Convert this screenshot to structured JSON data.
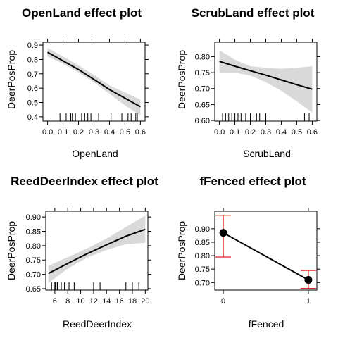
{
  "chart_data": [
    {
      "type": "line",
      "title": "OpenLand effect plot",
      "xlabel": "OpenLand",
      "ylabel": "DeerPosProp",
      "xlim": [
        -0.03,
        0.63
      ],
      "ylim": [
        0.37,
        0.92
      ],
      "xticks": [
        0.0,
        0.1,
        0.2,
        0.3,
        0.4,
        0.5,
        0.6
      ],
      "xtick_labels": [
        "0.0",
        "0.1",
        "0.2",
        "0.3",
        "0.4",
        "0.5",
        "0.6"
      ],
      "yticks": [
        0.4,
        0.5,
        0.6,
        0.7,
        0.8,
        0.9
      ],
      "ytick_labels": [
        "0.4",
        "0.5",
        "0.6",
        "0.7",
        "0.8",
        "0.9"
      ],
      "series": [
        {
          "x": [
            0.0,
            0.1,
            0.2,
            0.3,
            0.4,
            0.5,
            0.6
          ],
          "y": [
            0.85,
            0.79,
            0.73,
            0.66,
            0.59,
            0.53,
            0.47
          ],
          "lower": [
            0.82,
            0.77,
            0.71,
            0.64,
            0.56,
            0.48,
            0.41
          ],
          "upper": [
            0.88,
            0.82,
            0.76,
            0.69,
            0.62,
            0.57,
            0.52
          ]
        }
      ],
      "rug": [
        0.08,
        0.12,
        0.15,
        0.16,
        0.18,
        0.22,
        0.24,
        0.26,
        0.28,
        0.33,
        0.41,
        0.48,
        0.52,
        0.54,
        0.57,
        0.58
      ],
      "band": true,
      "points": false
    },
    {
      "type": "line",
      "title": "ScrubLand effect plot",
      "xlabel": "ScrubLand",
      "ylabel": "DeerPosProp",
      "xlim": [
        -0.03,
        0.63
      ],
      "ylim": [
        0.598,
        0.845
      ],
      "xticks": [
        0.0,
        0.1,
        0.2,
        0.3,
        0.4,
        0.5,
        0.6
      ],
      "xtick_labels": [
        "0.0",
        "0.1",
        "0.2",
        "0.3",
        "0.4",
        "0.5",
        "0.6"
      ],
      "yticks": [
        0.6,
        0.65,
        0.7,
        0.75,
        0.8
      ],
      "ytick_labels": [
        "0.60",
        "0.65",
        "0.70",
        "0.75",
        "0.80"
      ],
      "series": [
        {
          "x": [
            0.0,
            0.1,
            0.2,
            0.3,
            0.4,
            0.5,
            0.6
          ],
          "y": [
            0.785,
            0.77,
            0.756,
            0.742,
            0.727,
            0.712,
            0.698
          ],
          "lower": [
            0.748,
            0.75,
            0.741,
            0.72,
            0.693,
            0.66,
            0.625
          ],
          "upper": [
            0.82,
            0.79,
            0.77,
            0.765,
            0.762,
            0.765,
            0.77
          ]
        }
      ],
      "rug": [
        0.02,
        0.04,
        0.05,
        0.06,
        0.08,
        0.1,
        0.12,
        0.14,
        0.17,
        0.2,
        0.24,
        0.26,
        0.3,
        0.55,
        0.58
      ],
      "band": true,
      "points": false
    },
    {
      "type": "line",
      "title": "ReedDeerIndex effect plot",
      "xlabel": "ReedDeerIndex",
      "ylabel": "DeerPosProp",
      "xlim": [
        4.6,
        20.4
      ],
      "ylim": [
        0.645,
        0.92
      ],
      "xticks": [
        6,
        8,
        10,
        12,
        14,
        16,
        18,
        20
      ],
      "xtick_labels": [
        "6",
        "8",
        "10",
        "12",
        "14",
        "16",
        "18",
        "20"
      ],
      "yticks": [
        0.65,
        0.7,
        0.75,
        0.8,
        0.85,
        0.9
      ],
      "ytick_labels": [
        "0.65",
        "0.70",
        "0.75",
        "0.80",
        "0.85",
        "0.90"
      ],
      "series": [
        {
          "x": [
            5,
            8,
            11,
            14,
            17,
            20
          ],
          "y": [
            0.703,
            0.738,
            0.772,
            0.803,
            0.833,
            0.857
          ],
          "lower": [
            0.67,
            0.72,
            0.758,
            0.785,
            0.805,
            0.81
          ],
          "upper": [
            0.73,
            0.76,
            0.79,
            0.825,
            0.865,
            0.905
          ]
        }
      ],
      "rug": [
        5.5,
        6.0,
        6.1,
        6.2,
        6.4,
        6.5,
        7.0,
        7.5,
        8.2,
        9.0,
        12.0,
        13.0,
        17.0,
        18.0,
        19.0
      ],
      "band": true,
      "points": false
    },
    {
      "type": "line",
      "title": "fFenced effect plot",
      "xlabel": "fFenced",
      "ylabel": "DeerPosProp",
      "xlim": [
        -0.1,
        1.1
      ],
      "ylim": [
        0.672,
        0.965
      ],
      "xticks": [
        0,
        1
      ],
      "xtick_labels": [
        "0",
        "1"
      ],
      "yticks": [
        0.7,
        0.75,
        0.8,
        0.85,
        0.9
      ],
      "ytick_labels": [
        "0.70",
        "0.75",
        "0.80",
        "0.85",
        "0.90"
      ],
      "series": [
        {
          "x": [
            0,
            1
          ],
          "y": [
            0.885,
            0.71
          ],
          "lower": [
            0.795,
            0.678
          ],
          "upper": [
            0.95,
            0.745
          ]
        }
      ],
      "band": false,
      "points": true,
      "colors": {
        "errorbar": "#e0202a",
        "point": "#000000"
      }
    }
  ],
  "colors": {
    "band": "#d9d9d9",
    "line": "#000000"
  }
}
